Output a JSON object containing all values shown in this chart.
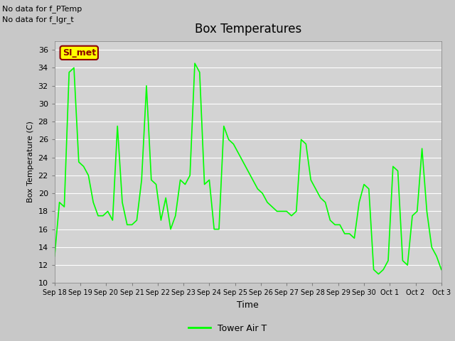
{
  "title": "Box Temperatures",
  "xlabel": "Time",
  "ylabel": "Box Temperature (C)",
  "no_data_texts": [
    "No data for f_PTemp",
    "No data for f_lgr_t"
  ],
  "si_met_label": "SI_met",
  "legend_label": "Tower Air T",
  "line_color": "#00ff00",
  "fig_facecolor": "#c8c8c8",
  "plot_bg_color": "#d0d0d0",
  "ylim": [
    10,
    37
  ],
  "yticks": [
    10,
    12,
    14,
    16,
    18,
    20,
    22,
    24,
    26,
    28,
    30,
    32,
    34,
    36
  ],
  "xtick_labels": [
    "Sep 18",
    "Sep 19",
    "Sep 20",
    "Sep 21",
    "Sep 22",
    "Sep 23",
    "Sep 24",
    "Sep 25",
    "Sep 26",
    "Sep 27",
    "Sep 28",
    "Sep 29",
    "Sep 30",
    "Oct 1",
    "Oct 2",
    "Oct 3"
  ],
  "y_values": [
    13.0,
    19.0,
    18.5,
    33.5,
    34.0,
    23.5,
    23.0,
    22.0,
    19.0,
    17.5,
    17.5,
    18.0,
    17.0,
    27.5,
    19.0,
    16.5,
    16.5,
    17.0,
    21.5,
    32.0,
    21.5,
    21.0,
    17.0,
    19.5,
    16.0,
    17.5,
    21.5,
    21.0,
    22.0,
    34.5,
    33.5,
    21.0,
    21.5,
    16.0,
    16.0,
    27.5,
    26.0,
    25.5,
    24.5,
    23.5,
    22.5,
    21.5,
    20.5,
    20.0,
    19.0,
    18.5,
    18.0,
    18.0,
    18.0,
    17.5,
    18.0,
    26.0,
    25.5,
    21.5,
    20.5,
    19.5,
    19.0,
    17.0,
    16.5,
    16.5,
    15.5,
    15.5,
    15.0,
    19.0,
    21.0,
    20.5,
    11.5,
    11.0,
    11.5,
    12.5,
    23.0,
    22.5,
    12.5,
    12.0,
    17.5,
    18.0,
    25.0,
    18.0,
    14.0,
    13.0,
    11.5
  ]
}
